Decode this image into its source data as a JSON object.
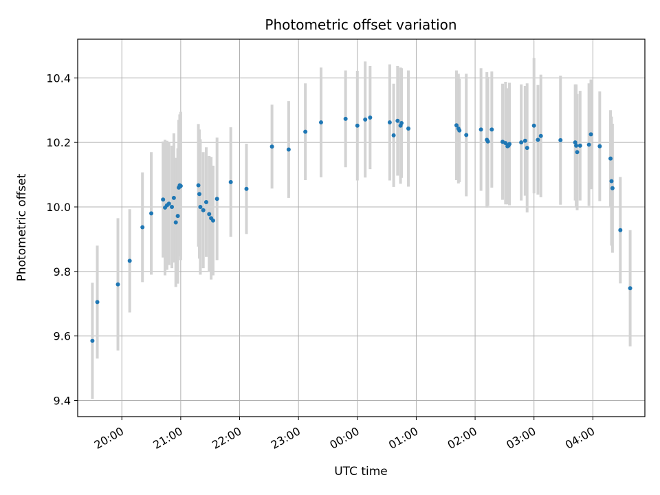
{
  "chart_data": {
    "type": "scatter",
    "title": "Photometric offset variation",
    "xlabel": "UTC time",
    "ylabel": "Photometric offset",
    "xlim": [
      "2023-01-01T19:15",
      "2023-01-02T04:53"
    ],
    "ylim": [
      9.35,
      10.52
    ],
    "grid": true,
    "x_ticks": [
      "2023-01-01T20:00",
      "2023-01-01T21:00",
      "2023-01-01T22:00",
      "2023-01-01T23:00",
      "2023-01-02T00:00",
      "2023-01-02T01:00",
      "2023-01-02T02:00",
      "2023-01-02T03:00",
      "2023-01-02T04:00"
    ],
    "x_tick_labels": [
      "20:00",
      "21:00",
      "22:00",
      "23:00",
      "00:00",
      "01:00",
      "02:00",
      "03:00",
      "04:00"
    ],
    "y_ticks": [
      9.4,
      9.6,
      9.8,
      10.0,
      10.2,
      10.4
    ],
    "y_tick_labels": [
      "9.4",
      "9.6",
      "9.8",
      "10.0",
      "10.2",
      "10.4"
    ],
    "colors": {
      "points": "#1f77b4",
      "errorbars": "#d3d3d3",
      "grid": "#b0b0b0"
    },
    "series": [
      {
        "x": [
          "2023-01-01T19:30",
          "2023-01-01T19:35",
          "2023-01-01T19:56",
          "2023-01-01T20:08",
          "2023-01-01T20:21",
          "2023-01-01T20:30",
          "2023-01-01T20:42",
          "2023-01-01T20:44",
          "2023-01-01T20:46",
          "2023-01-01T20:48",
          "2023-01-01T20:51",
          "2023-01-01T20:53",
          "2023-01-01T20:55",
          "2023-01-01T20:57",
          "2023-01-01T20:58",
          "2023-01-01T20:59",
          "2023-01-01T21:00",
          "2023-01-01T21:18",
          "2023-01-01T21:19",
          "2023-01-01T21:20",
          "2023-01-01T21:23",
          "2023-01-01T21:26",
          "2023-01-01T21:29",
          "2023-01-01T21:31",
          "2023-01-01T21:33",
          "2023-01-01T21:37",
          "2023-01-01T21:51",
          "2023-01-01T22:07",
          "2023-01-01T22:33",
          "2023-01-01T22:50",
          "2023-01-01T23:07",
          "2023-01-01T23:23",
          "2023-01-01T23:48",
          "2023-01-02T00:00",
          "2023-01-02T00:08",
          "2023-01-02T00:13",
          "2023-01-02T00:33",
          "2023-01-02T00:37",
          "2023-01-02T00:41",
          "2023-01-02T00:44",
          "2023-01-02T00:45",
          "2023-01-02T00:52",
          "2023-01-02T01:41",
          "2023-01-02T01:43",
          "2023-01-02T01:44",
          "2023-01-02T01:51",
          "2023-01-02T02:06",
          "2023-01-02T02:12",
          "2023-01-02T02:13",
          "2023-01-02T02:17",
          "2023-01-02T02:28",
          "2023-01-02T02:31",
          "2023-01-02T02:33",
          "2023-01-02T02:34",
          "2023-01-02T02:35",
          "2023-01-02T02:47",
          "2023-01-02T02:51",
          "2023-01-02T02:53",
          "2023-01-02T03:00",
          "2023-01-02T03:04",
          "2023-01-02T03:07",
          "2023-01-02T03:27",
          "2023-01-02T03:42",
          "2023-01-02T03:43",
          "2023-01-02T03:44",
          "2023-01-02T03:47",
          "2023-01-02T03:56",
          "2023-01-02T03:58",
          "2023-01-02T04:07",
          "2023-01-02T04:18",
          "2023-01-02T04:19",
          "2023-01-02T04:20",
          "2023-01-02T04:28",
          "2023-01-02T04:38"
        ],
        "y": [
          9.585,
          9.705,
          9.76,
          9.833,
          9.937,
          9.98,
          10.023,
          9.998,
          10.005,
          10.01,
          10.0,
          10.028,
          9.952,
          9.972,
          10.06,
          10.067,
          10.065,
          10.067,
          10.04,
          10.0,
          9.99,
          10.015,
          9.978,
          9.965,
          9.958,
          10.025,
          10.077,
          10.056,
          10.187,
          10.178,
          10.233,
          10.262,
          10.273,
          10.252,
          10.271,
          10.277,
          10.262,
          10.222,
          10.267,
          10.252,
          10.26,
          10.243,
          10.253,
          10.243,
          10.237,
          10.223,
          10.24,
          10.208,
          10.203,
          10.24,
          10.202,
          10.198,
          10.188,
          10.19,
          10.195,
          10.2,
          10.205,
          10.183,
          10.252,
          10.208,
          10.22,
          10.207,
          10.2,
          10.19,
          10.17,
          10.19,
          10.193,
          10.225,
          10.188,
          10.15,
          10.08,
          10.058,
          9.928,
          9.748
        ],
        "yerr": [
          0.18,
          0.175,
          0.205,
          0.16,
          0.17,
          0.19,
          0.18,
          0.21,
          0.2,
          0.19,
          0.19,
          0.2,
          0.2,
          0.21,
          0.21,
          0.22,
          0.23,
          0.19,
          0.2,
          0.21,
          0.18,
          0.17,
          0.18,
          0.19,
          0.17,
          0.19,
          0.17,
          0.14,
          0.13,
          0.15,
          0.15,
          0.17,
          0.15,
          0.17,
          0.18,
          0.16,
          0.18,
          0.16,
          0.17,
          0.18,
          0.17,
          0.18,
          0.17,
          0.17,
          0.16,
          0.19,
          0.19,
          0.21,
          0.2,
          0.18,
          0.18,
          0.19,
          0.18,
          0.17,
          0.19,
          0.18,
          0.17,
          0.2,
          0.21,
          0.17,
          0.19,
          0.2,
          0.18,
          0.19,
          0.18,
          0.17,
          0.19,
          0.17,
          0.17,
          0.15,
          0.2,
          0.2,
          0.165,
          0.18
        ]
      }
    ]
  }
}
